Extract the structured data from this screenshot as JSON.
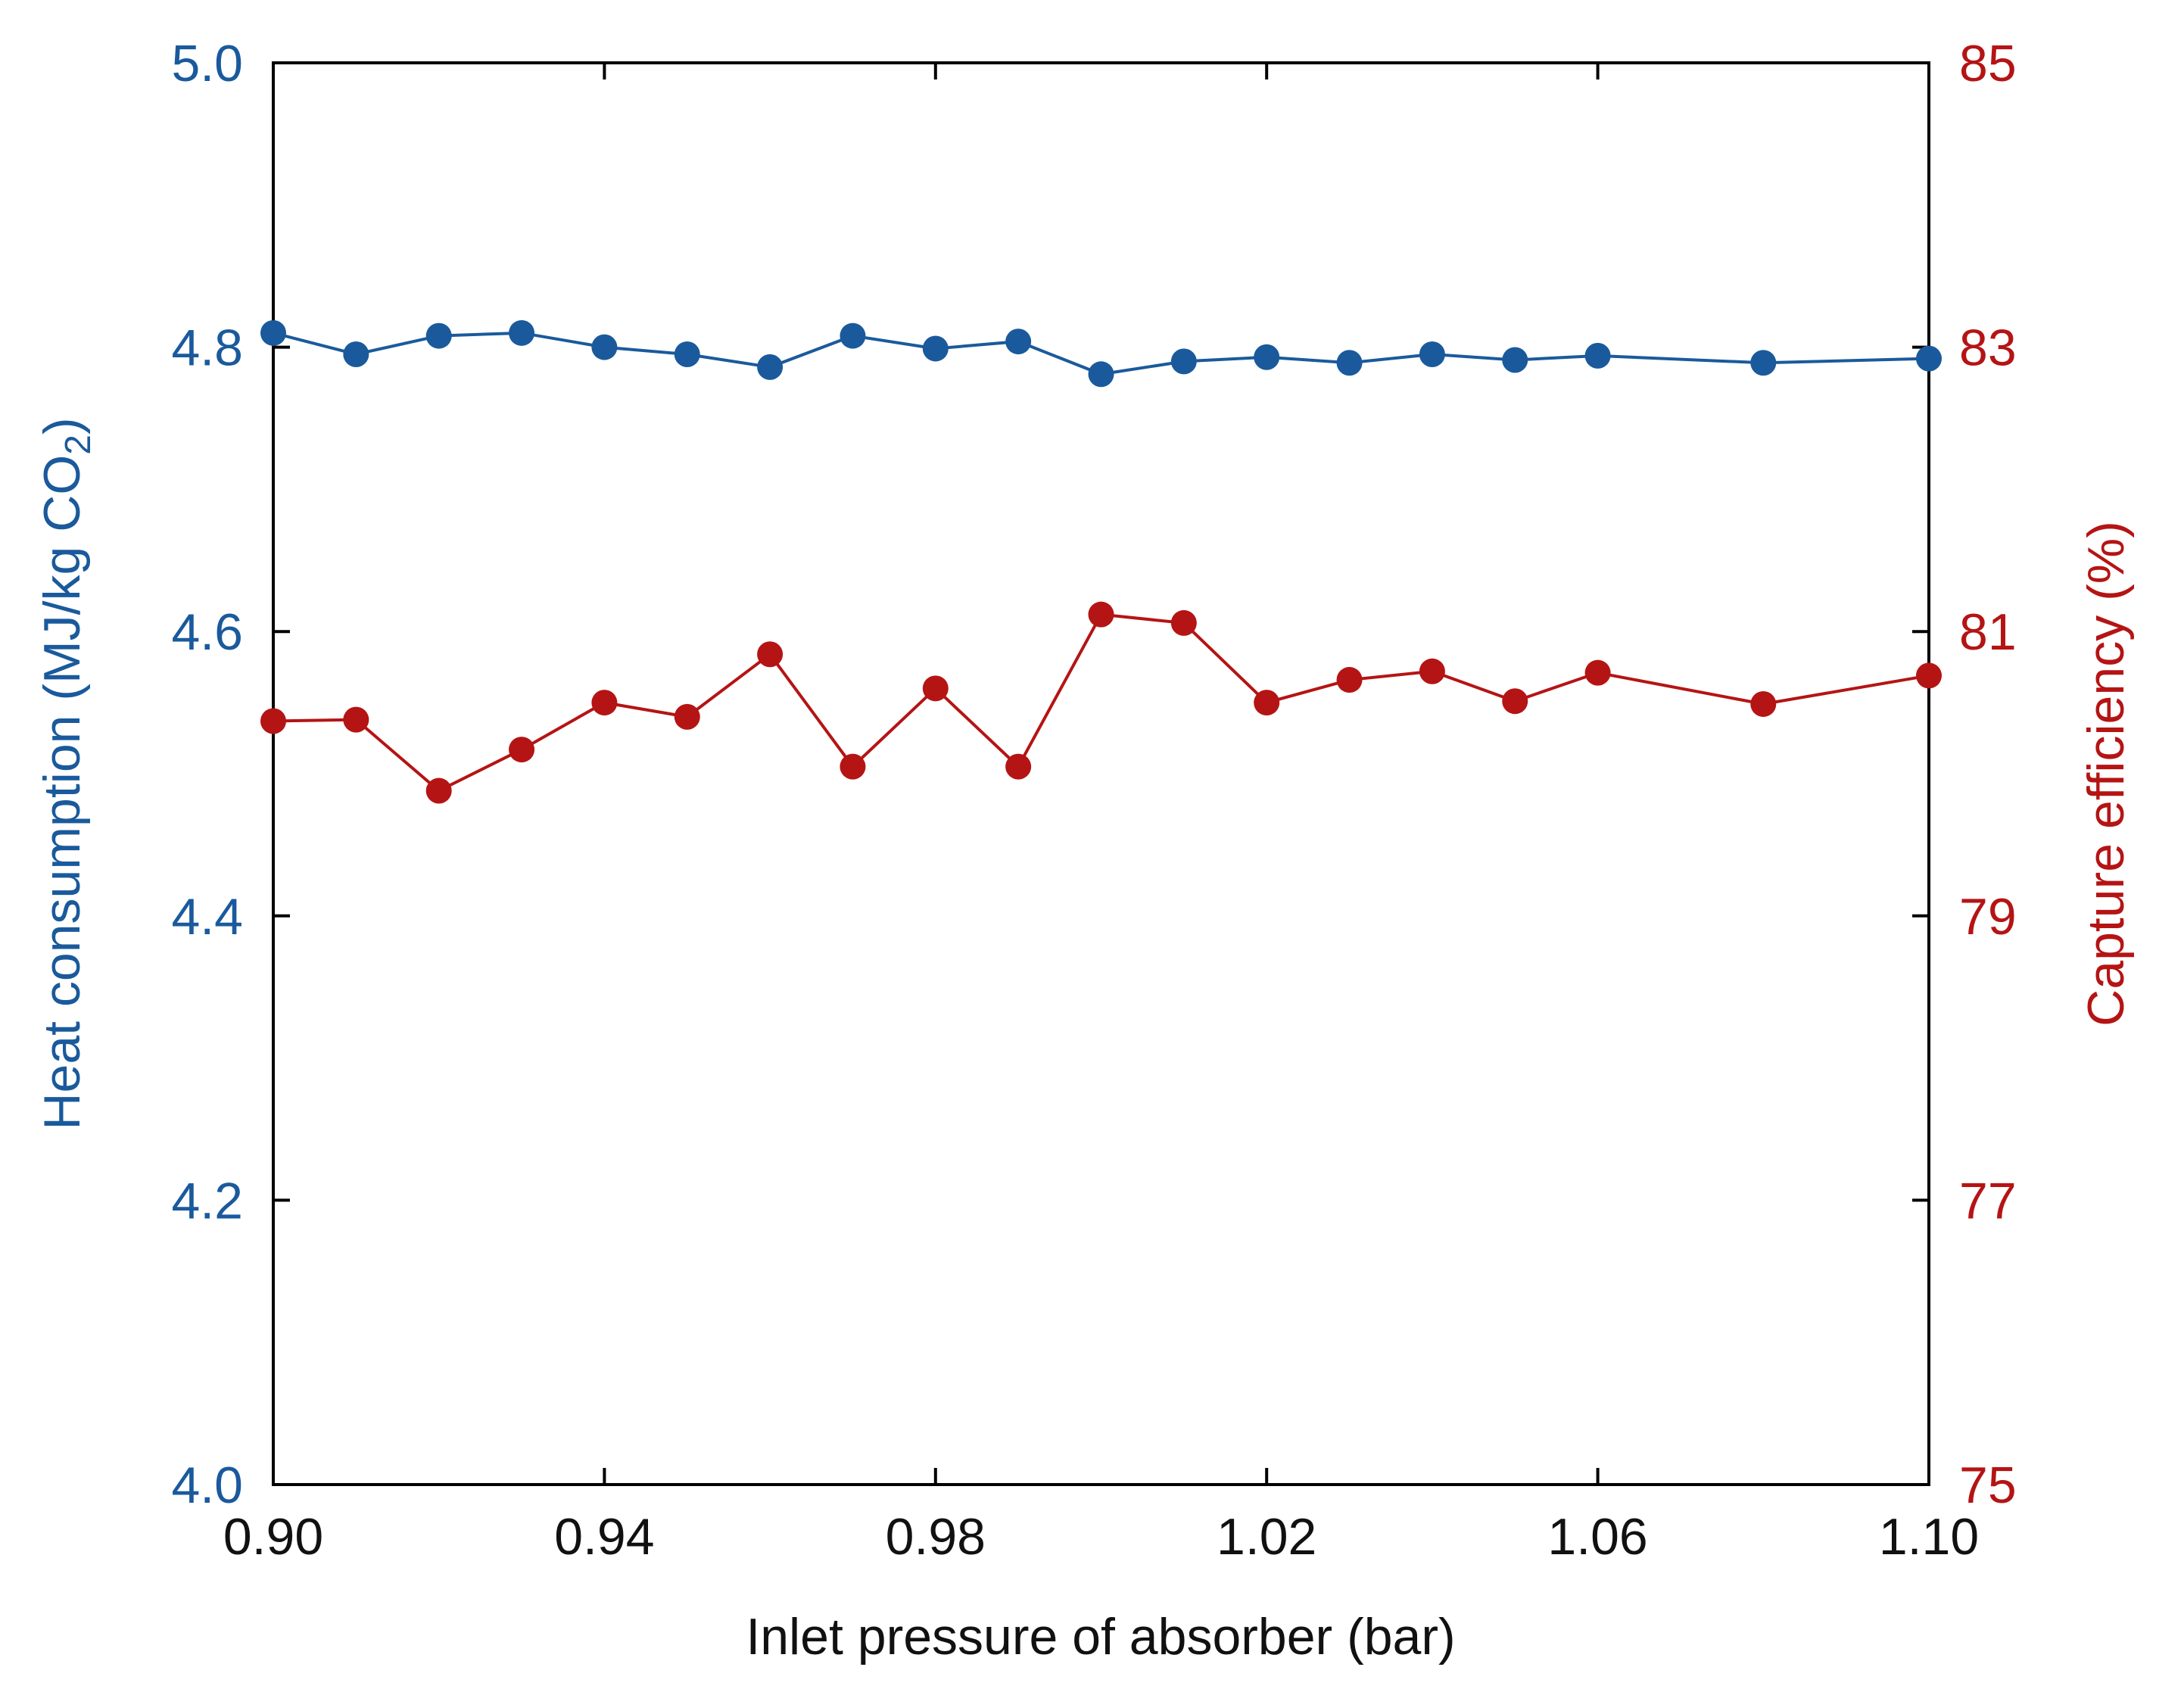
{
  "chart_data": {
    "type": "line",
    "xlabel": "Inlet pressure of absorber (bar)",
    "xlim": [
      0.9,
      1.1
    ],
    "x_ticks": [
      "0.90",
      "0.94",
      "0.98",
      "1.02",
      "1.06",
      "1.10"
    ],
    "x_tick_values": [
      0.9,
      0.94,
      0.98,
      1.02,
      1.06,
      1.1
    ],
    "y_left": {
      "label": "Heat consumption (MJ/kg CO",
      "label_subscript": "2",
      "label_suffix": ")",
      "ylim": [
        4.0,
        5.0
      ],
      "ticks": [
        "4.0",
        "4.2",
        "4.4",
        "4.6",
        "4.8",
        "5.0"
      ],
      "tick_values": [
        4.0,
        4.2,
        4.4,
        4.6,
        4.8,
        5.0
      ],
      "color": "#1a5a9c"
    },
    "y_right": {
      "label": "Capture efficiency (%)",
      "ylim": [
        75,
        85
      ],
      "ticks": [
        "75",
        "77",
        "79",
        "81",
        "83",
        "85"
      ],
      "tick_values": [
        75,
        77,
        79,
        81,
        83,
        85
      ],
      "color": "#b51414"
    },
    "x": [
      0.9,
      0.91,
      0.92,
      0.93,
      0.94,
      0.95,
      0.96,
      0.97,
      0.98,
      0.99,
      1.0,
      1.01,
      1.02,
      1.03,
      1.04,
      1.05,
      1.06,
      1.08,
      1.1
    ],
    "series": [
      {
        "name": "Heat consumption",
        "axis": "left",
        "color": "#1a5a9c",
        "values": [
          4.81,
          4.795,
          4.808,
          4.81,
          4.8,
          4.795,
          4.786,
          4.808,
          4.799,
          4.804,
          4.781,
          4.79,
          4.793,
          4.789,
          4.795,
          4.791,
          4.794,
          4.789,
          4.792
        ]
      },
      {
        "name": "Capture efficiency",
        "axis": "right",
        "color": "#b51414",
        "values": [
          80.37,
          80.38,
          79.88,
          80.17,
          80.5,
          80.4,
          80.84,
          80.05,
          80.6,
          80.05,
          81.12,
          81.06,
          80.5,
          80.66,
          80.72,
          80.51,
          80.71,
          80.49,
          80.69
        ]
      }
    ]
  }
}
